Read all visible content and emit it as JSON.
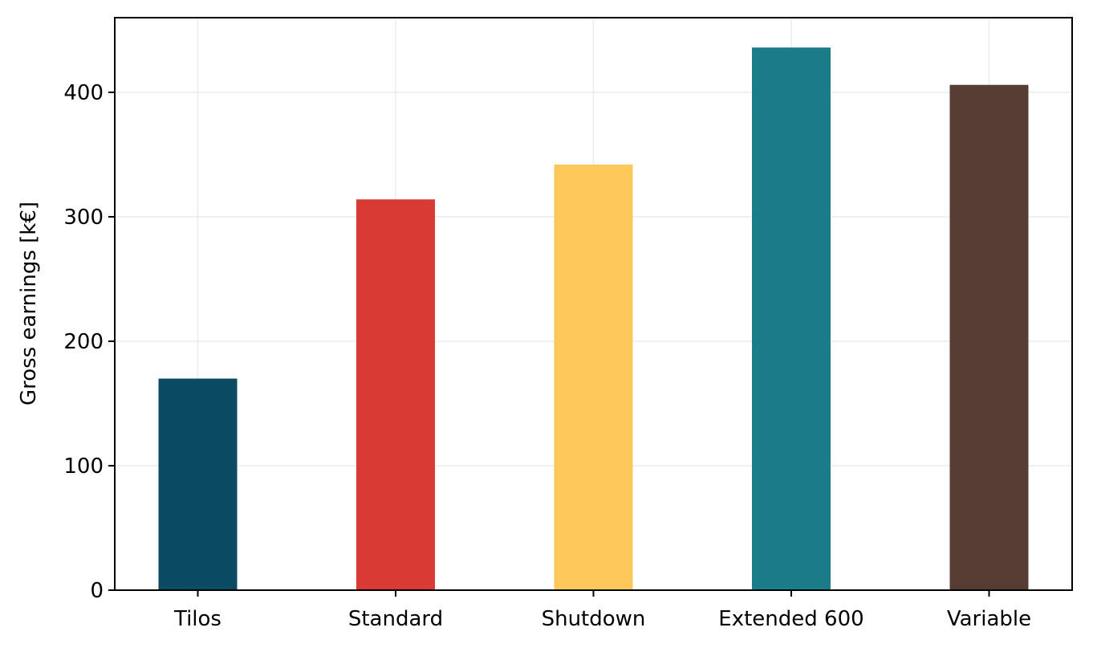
{
  "chart_data": {
    "type": "bar",
    "title": "",
    "xlabel": "",
    "ylabel": "Gross earnings [k€]",
    "categories": [
      "Tilos",
      "Standard",
      "Shutdown",
      "Extended 600",
      "Variable"
    ],
    "values": [
      170,
      314,
      342,
      436,
      406
    ],
    "colors": [
      "#0a4b61",
      "#d93a33",
      "#fdc75a",
      "#1a7d88",
      "#573c34"
    ],
    "ylim": [
      0,
      460
    ],
    "yticks": [
      0,
      100,
      200,
      300,
      400
    ],
    "grid": true,
    "legend": "none"
  }
}
